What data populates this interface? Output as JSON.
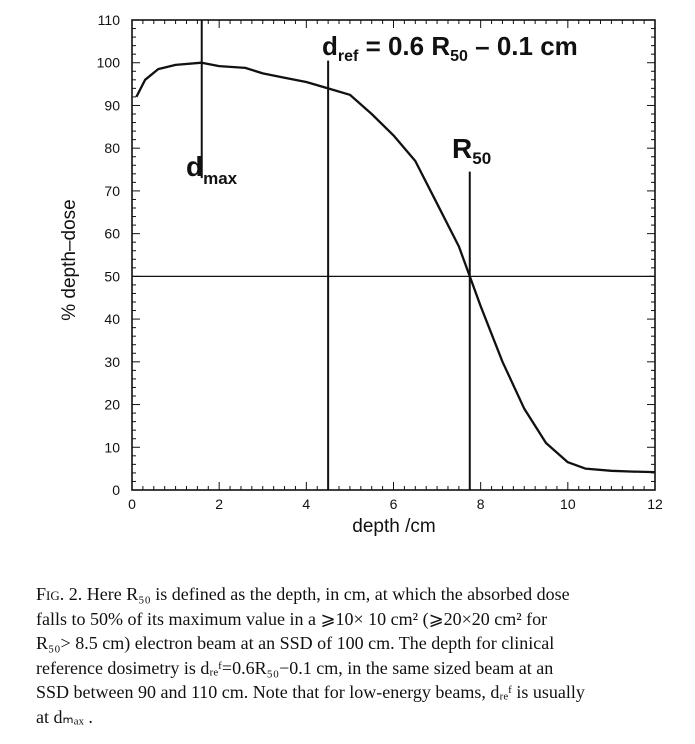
{
  "chart_data": {
    "type": "line",
    "xlabel": "depth /cm",
    "ylabel": "% depth–dose",
    "xlim": [
      0,
      12
    ],
    "ylim": [
      0,
      110
    ],
    "x_ticks": [
      0,
      2,
      4,
      6,
      8,
      10,
      12
    ],
    "y_ticks": [
      0,
      10,
      20,
      30,
      40,
      50,
      60,
      70,
      80,
      90,
      100,
      110
    ],
    "grid": false,
    "series": [
      {
        "x": [
          0.1,
          0.3,
          0.6,
          1.0,
          1.6,
          2.0,
          2.6,
          3.0,
          3.5,
          4.0,
          4.5,
          5.0,
          5.5,
          6.0,
          6.5,
          7.0,
          7.5,
          7.75,
          8.0,
          8.5,
          9.0,
          9.5,
          10.0,
          10.4,
          11.0,
          11.5,
          12.0
        ],
        "y": [
          92,
          96,
          98.5,
          99.5,
          100,
          99.2,
          98.8,
          97.5,
          96.5,
          95.5,
          94,
          92.5,
          88,
          83,
          77,
          67,
          57,
          50,
          43,
          30,
          19,
          11,
          6.5,
          5,
          4.5,
          4.3,
          4.2
        ]
      }
    ],
    "reference_lines": {
      "horizontal_y": 50,
      "vertical_x": [
        1.6,
        4.5,
        7.75
      ]
    },
    "annotations": {
      "dmax": {
        "main": "d",
        "sub": "max"
      },
      "dref": {
        "main": "d",
        "sub": "ref",
        "eq": " = 0.6 R",
        "sub2": "50",
        "tail": " – 0.1 cm"
      },
      "r50": {
        "main": "R",
        "sub": "50"
      }
    }
  },
  "caption": {
    "fig_label": "Fig. 2.",
    "lines": [
      "Here R₅₀ is defined as the depth, in cm, at which the absorbed dose",
      "falls to 50% of its maximum value in a ⩾10× 10 cm² (⩾20×20 cm² for",
      "R₅₀> 8.5 cm) electron beam at an SSD of 100 cm. The depth for clinical",
      "reference dosimetry is dᵣₑᶠ=0.6R₅₀−0.1 cm, in the same sized beam at an",
      "SSD between 90 and 110 cm. Note that for low-energy beams, dᵣₑᶠ is usually",
      "at dₘₐₓ ."
    ]
  }
}
